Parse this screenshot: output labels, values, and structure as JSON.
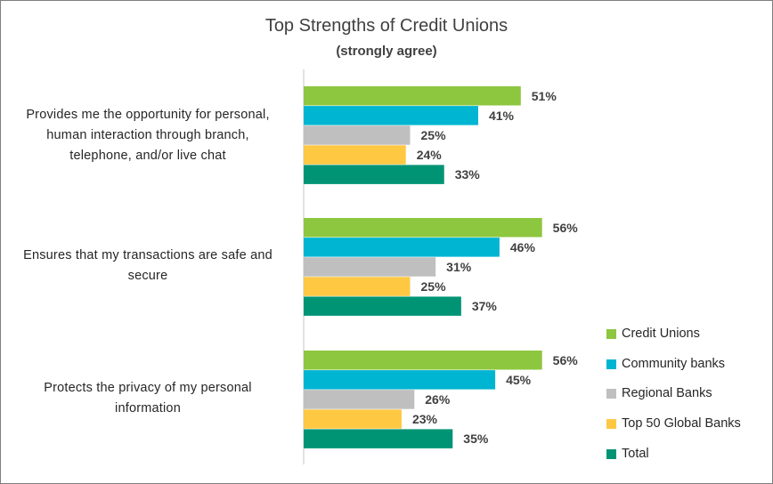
{
  "chart_data": {
    "type": "bar",
    "orientation": "horizontal",
    "title": "Top Strengths of Credit Unions",
    "subtitle": "(strongly agree)",
    "categories": [
      "Provides me the opportunity for personal, human interaction through branch, telephone, and/or live chat",
      "Ensures that my transactions are safe and secure",
      "Protects the privacy of my personal information"
    ],
    "series": [
      {
        "name": "Credit Unions",
        "color": "#8dc63f",
        "values": [
          51,
          56,
          56
        ]
      },
      {
        "name": "Community banks",
        "color": "#00b5d1",
        "values": [
          41,
          46,
          45
        ]
      },
      {
        "name": "Regional Banks",
        "color": "#bfbfbf",
        "values": [
          25,
          31,
          26
        ]
      },
      {
        "name": "Top 50 Global Banks",
        "color": "#ffc843",
        "values": [
          24,
          25,
          23
        ]
      },
      {
        "name": "Total",
        "color": "#009475",
        "values": [
          33,
          37,
          35
        ]
      }
    ],
    "value_suffix": "%",
    "xlim": [
      0,
      100
    ],
    "data_labels": true,
    "grid": false,
    "legend_position": "bottom-right"
  },
  "category_labels": [
    [
      "Provides me the opportunity for personal,",
      "human interaction through branch,",
      "telephone, and/or live chat"
    ],
    [
      "Ensures that my transactions are safe and",
      "secure"
    ],
    [
      "Protects the privacy of my personal",
      "information"
    ]
  ]
}
